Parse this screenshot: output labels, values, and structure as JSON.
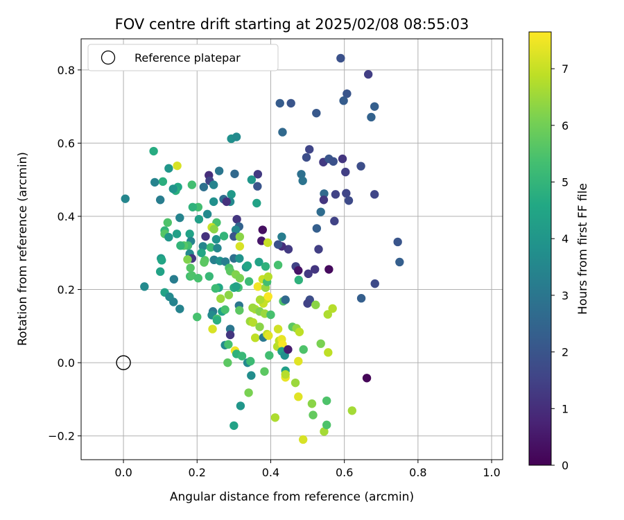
{
  "chart_data": {
    "type": "scatter",
    "title": "FOV centre drift starting at 2025/02/08 08:55:03",
    "xlabel": "Angular distance from reference (arcmin)",
    "ylabel": "Rotation from reference (arcmin)",
    "xlim": [
      -0.115,
      1.03
    ],
    "ylim": [
      -0.265,
      0.885
    ],
    "xticks": [
      0.0,
      0.2,
      0.4,
      0.6,
      0.8,
      1.0
    ],
    "xtick_labels": [
      "0.0",
      "0.2",
      "0.4",
      "0.6",
      "0.8",
      "1.0"
    ],
    "yticks": [
      -0.2,
      0.0,
      0.2,
      0.4,
      0.6,
      0.8
    ],
    "ytick_labels": [
      "−0.2",
      "0.0",
      "0.2",
      "0.4",
      "0.6",
      "0.8"
    ],
    "grid": true,
    "legend": {
      "placement": "top-left",
      "label": "Reference platepar"
    },
    "reference_point": {
      "x": 0.0,
      "y": 0.0
    },
    "colorbar": {
      "label": "Hours from first FF file",
      "min": 0,
      "max": 7.65,
      "ticks": [
        0,
        1,
        2,
        3,
        4,
        5,
        6,
        7
      ],
      "tick_labels": [
        "0",
        "1",
        "2",
        "3",
        "4",
        "5",
        "6",
        "7"
      ],
      "colormap": "viridis"
    },
    "points": [
      {
        "x": 0.59,
        "y": 0.832,
        "c": 1.9
      },
      {
        "x": 0.665,
        "y": 0.788,
        "c": 1.4
      },
      {
        "x": 0.607,
        "y": 0.735,
        "c": 2.0
      },
      {
        "x": 0.598,
        "y": 0.716,
        "c": 2.2
      },
      {
        "x": 0.682,
        "y": 0.7,
        "c": 2.3
      },
      {
        "x": 0.673,
        "y": 0.671,
        "c": 2.4
      },
      {
        "x": 0.425,
        "y": 0.709,
        "c": 2.2
      },
      {
        "x": 0.455,
        "y": 0.709,
        "c": 2.0
      },
      {
        "x": 0.524,
        "y": 0.682,
        "c": 2.1
      },
      {
        "x": 0.432,
        "y": 0.63,
        "c": 2.6
      },
      {
        "x": 0.293,
        "y": 0.612,
        "c": 3.8
      },
      {
        "x": 0.307,
        "y": 0.617,
        "c": 3.6
      },
      {
        "x": 0.505,
        "y": 0.583,
        "c": 1.6
      },
      {
        "x": 0.497,
        "y": 0.561,
        "c": 1.8
      },
      {
        "x": 0.543,
        "y": 0.548,
        "c": 1.3
      },
      {
        "x": 0.558,
        "y": 0.557,
        "c": 2.0
      },
      {
        "x": 0.57,
        "y": 0.55,
        "c": 1.9
      },
      {
        "x": 0.595,
        "y": 0.557,
        "c": 1.2
      },
      {
        "x": 0.603,
        "y": 0.521,
        "c": 1.4
      },
      {
        "x": 0.645,
        "y": 0.537,
        "c": 1.8
      },
      {
        "x": 0.483,
        "y": 0.515,
        "c": 2.8
      },
      {
        "x": 0.487,
        "y": 0.497,
        "c": 2.9
      },
      {
        "x": 0.545,
        "y": 0.462,
        "c": 2.6
      },
      {
        "x": 0.576,
        "y": 0.46,
        "c": 1.5
      },
      {
        "x": 0.605,
        "y": 0.463,
        "c": 1.6
      },
      {
        "x": 0.612,
        "y": 0.443,
        "c": 1.7
      },
      {
        "x": 0.544,
        "y": 0.445,
        "c": 1.2
      },
      {
        "x": 0.536,
        "y": 0.412,
        "c": 2.7
      },
      {
        "x": 0.573,
        "y": 0.387,
        "c": 1.5
      },
      {
        "x": 0.525,
        "y": 0.367,
        "c": 2.3
      },
      {
        "x": 0.682,
        "y": 0.46,
        "c": 1.6
      },
      {
        "x": 0.745,
        "y": 0.33,
        "c": 2.0
      },
      {
        "x": 0.75,
        "y": 0.275,
        "c": 2.3
      },
      {
        "x": 0.683,
        "y": 0.216,
        "c": 1.7
      },
      {
        "x": 0.646,
        "y": 0.176,
        "c": 2.3
      },
      {
        "x": 0.661,
        "y": -0.042,
        "c": 0.1
      },
      {
        "x": 0.53,
        "y": 0.31,
        "c": 1.4
      },
      {
        "x": 0.52,
        "y": 0.255,
        "c": 1.2
      },
      {
        "x": 0.502,
        "y": 0.243,
        "c": 1.3
      },
      {
        "x": 0.468,
        "y": 0.263,
        "c": 1.5
      },
      {
        "x": 0.475,
        "y": 0.252,
        "c": 0.4
      },
      {
        "x": 0.558,
        "y": 0.255,
        "c": 0.2
      },
      {
        "x": 0.506,
        "y": 0.172,
        "c": 1.8
      },
      {
        "x": 0.5,
        "y": 0.162,
        "c": 1.5
      },
      {
        "x": 0.448,
        "y": 0.31,
        "c": 1.3
      },
      {
        "x": 0.43,
        "y": 0.318,
        "c": 1.0
      },
      {
        "x": 0.42,
        "y": 0.323,
        "c": 1.9
      },
      {
        "x": 0.43,
        "y": 0.344,
        "c": 3.2
      },
      {
        "x": 0.378,
        "y": 0.363,
        "c": 0.3
      },
      {
        "x": 0.375,
        "y": 0.333,
        "c": 0.5
      },
      {
        "x": 0.365,
        "y": 0.515,
        "c": 1.3
      },
      {
        "x": 0.364,
        "y": 0.482,
        "c": 2.0
      },
      {
        "x": 0.348,
        "y": 0.5,
        "c": 4.0
      },
      {
        "x": 0.362,
        "y": 0.436,
        "c": 4.4
      },
      {
        "x": 0.293,
        "y": 0.46,
        "c": 4.1
      },
      {
        "x": 0.29,
        "y": 0.44,
        "c": 3.6
      },
      {
        "x": 0.232,
        "y": 0.512,
        "c": 1.0
      },
      {
        "x": 0.234,
        "y": 0.497,
        "c": 1.5
      },
      {
        "x": 0.26,
        "y": 0.524,
        "c": 3.0
      },
      {
        "x": 0.302,
        "y": 0.516,
        "c": 2.6
      },
      {
        "x": 0.245,
        "y": 0.486,
        "c": 3.4
      },
      {
        "x": 0.218,
        "y": 0.48,
        "c": 2.8
      },
      {
        "x": 0.272,
        "y": 0.447,
        "c": 2.7
      },
      {
        "x": 0.28,
        "y": 0.44,
        "c": 1.1
      },
      {
        "x": 0.245,
        "y": 0.44,
        "c": 3.8
      },
      {
        "x": 0.228,
        "y": 0.406,
        "c": 3.6
      },
      {
        "x": 0.253,
        "y": 0.383,
        "c": 5.4
      },
      {
        "x": 0.308,
        "y": 0.392,
        "c": 1.2
      },
      {
        "x": 0.314,
        "y": 0.372,
        "c": 2.4
      },
      {
        "x": 0.305,
        "y": 0.363,
        "c": 3.5
      },
      {
        "x": 0.3,
        "y": 0.345,
        "c": 2.0
      },
      {
        "x": 0.316,
        "y": 0.344,
        "c": 6.3
      },
      {
        "x": 0.273,
        "y": 0.346,
        "c": 5.0
      },
      {
        "x": 0.252,
        "y": 0.337,
        "c": 3.9
      },
      {
        "x": 0.223,
        "y": 0.345,
        "c": 1.1
      },
      {
        "x": 0.216,
        "y": 0.318,
        "c": 3.5
      },
      {
        "x": 0.237,
        "y": 0.315,
        "c": 5.2
      },
      {
        "x": 0.255,
        "y": 0.313,
        "c": 3.5
      },
      {
        "x": 0.246,
        "y": 0.281,
        "c": 3.3
      },
      {
        "x": 0.262,
        "y": 0.278,
        "c": 3.8
      },
      {
        "x": 0.277,
        "y": 0.276,
        "c": 3.2
      },
      {
        "x": 0.3,
        "y": 0.285,
        "c": 2.8
      },
      {
        "x": 0.315,
        "y": 0.285,
        "c": 3.9
      },
      {
        "x": 0.333,
        "y": 0.261,
        "c": 4.0
      },
      {
        "x": 0.337,
        "y": 0.265,
        "c": 4.5
      },
      {
        "x": 0.287,
        "y": 0.259,
        "c": 5.5
      },
      {
        "x": 0.29,
        "y": 0.25,
        "c": 5.7
      },
      {
        "x": 0.305,
        "y": 0.241,
        "c": 6.2
      },
      {
        "x": 0.316,
        "y": 0.231,
        "c": 6.1
      },
      {
        "x": 0.312,
        "y": 0.205,
        "c": 5.3
      },
      {
        "x": 0.3,
        "y": 0.205,
        "c": 4.7
      },
      {
        "x": 0.259,
        "y": 0.205,
        "c": 4.6
      },
      {
        "x": 0.25,
        "y": 0.203,
        "c": 5.2
      },
      {
        "x": 0.233,
        "y": 0.236,
        "c": 5.1
      },
      {
        "x": 0.221,
        "y": 0.28,
        "c": 5.6
      },
      {
        "x": 0.219,
        "y": 0.274,
        "c": 5.7
      },
      {
        "x": 0.212,
        "y": 0.3,
        "c": 4.5
      },
      {
        "x": 0.205,
        "y": 0.392,
        "c": 4.3
      },
      {
        "x": 0.203,
        "y": 0.425,
        "c": 5.3
      },
      {
        "x": 0.188,
        "y": 0.425,
        "c": 4.9
      },
      {
        "x": 0.186,
        "y": 0.486,
        "c": 5.3
      },
      {
        "x": 0.148,
        "y": 0.48,
        "c": 4.6
      },
      {
        "x": 0.142,
        "y": 0.47,
        "c": 4.8
      },
      {
        "x": 0.146,
        "y": 0.538,
        "c": 7.2
      },
      {
        "x": 0.123,
        "y": 0.531,
        "c": 4.0
      },
      {
        "x": 0.082,
        "y": 0.578,
        "c": 4.7
      },
      {
        "x": 0.107,
        "y": 0.495,
        "c": 4.8
      },
      {
        "x": 0.085,
        "y": 0.493,
        "c": 3.4
      },
      {
        "x": 0.135,
        "y": 0.475,
        "c": 3.9
      },
      {
        "x": 0.1,
        "y": 0.445,
        "c": 3.2
      },
      {
        "x": 0.153,
        "y": 0.396,
        "c": 3.4
      },
      {
        "x": 0.005,
        "y": 0.448,
        "c": 3.5
      },
      {
        "x": 0.12,
        "y": 0.383,
        "c": 5.5
      },
      {
        "x": 0.112,
        "y": 0.361,
        "c": 5.0
      },
      {
        "x": 0.112,
        "y": 0.352,
        "c": 5.6
      },
      {
        "x": 0.145,
        "y": 0.352,
        "c": 4.3
      },
      {
        "x": 0.18,
        "y": 0.352,
        "c": 4.4
      },
      {
        "x": 0.123,
        "y": 0.343,
        "c": 4.0
      },
      {
        "x": 0.183,
        "y": 0.332,
        "c": 3.4
      },
      {
        "x": 0.175,
        "y": 0.32,
        "c": 5.3
      },
      {
        "x": 0.164,
        "y": 0.32,
        "c": 5.6
      },
      {
        "x": 0.155,
        "y": 0.32,
        "c": 5.0
      },
      {
        "x": 0.18,
        "y": 0.298,
        "c": 3.6
      },
      {
        "x": 0.186,
        "y": 0.285,
        "c": 1.2
      },
      {
        "x": 0.174,
        "y": 0.282,
        "c": 6.2
      },
      {
        "x": 0.182,
        "y": 0.259,
        "c": 5.6
      },
      {
        "x": 0.181,
        "y": 0.236,
        "c": 5.3
      },
      {
        "x": 0.186,
        "y": 0.238,
        "c": 5.5
      },
      {
        "x": 0.203,
        "y": 0.231,
        "c": 5.4
      },
      {
        "x": 0.102,
        "y": 0.285,
        "c": 4.1
      },
      {
        "x": 0.104,
        "y": 0.28,
        "c": 4.5
      },
      {
        "x": 0.1,
        "y": 0.249,
        "c": 4.4
      },
      {
        "x": 0.137,
        "y": 0.228,
        "c": 3.2
      },
      {
        "x": 0.057,
        "y": 0.208,
        "c": 3.6
      },
      {
        "x": 0.112,
        "y": 0.192,
        "c": 4.4
      },
      {
        "x": 0.125,
        "y": 0.18,
        "c": 3.6
      },
      {
        "x": 0.136,
        "y": 0.166,
        "c": 3.4
      },
      {
        "x": 0.153,
        "y": 0.147,
        "c": 3.4
      },
      {
        "x": 0.2,
        "y": 0.125,
        "c": 5.4
      },
      {
        "x": 0.243,
        "y": 0.14,
        "c": 3.1
      },
      {
        "x": 0.24,
        "y": 0.13,
        "c": 3.6
      },
      {
        "x": 0.254,
        "y": 0.12,
        "c": 5.4
      },
      {
        "x": 0.254,
        "y": 0.116,
        "c": 4.8
      },
      {
        "x": 0.268,
        "y": 0.14,
        "c": 4.4
      },
      {
        "x": 0.276,
        "y": 0.145,
        "c": 5.4
      },
      {
        "x": 0.286,
        "y": 0.185,
        "c": 6.3
      },
      {
        "x": 0.264,
        "y": 0.175,
        "c": 6.5
      },
      {
        "x": 0.24,
        "y": 0.37,
        "c": 7.0
      },
      {
        "x": 0.246,
        "y": 0.365,
        "c": 6.3
      },
      {
        "x": 0.316,
        "y": 0.318,
        "c": 7.2
      },
      {
        "x": 0.306,
        "y": 0.208,
        "c": 4.4
      },
      {
        "x": 0.314,
        "y": 0.156,
        "c": 3.0
      },
      {
        "x": 0.315,
        "y": 0.143,
        "c": 5.7
      },
      {
        "x": 0.29,
        "y": 0.092,
        "c": 3.0
      },
      {
        "x": 0.29,
        "y": 0.076,
        "c": 1.2
      },
      {
        "x": 0.242,
        "y": 0.092,
        "c": 7.2
      },
      {
        "x": 0.276,
        "y": 0.048,
        "c": 3.6
      },
      {
        "x": 0.285,
        "y": 0.05,
        "c": 5.4
      },
      {
        "x": 0.303,
        "y": 0.033,
        "c": 7.5
      },
      {
        "x": 0.307,
        "y": 0.024,
        "c": 4.9
      },
      {
        "x": 0.322,
        "y": 0.018,
        "c": 5.1
      },
      {
        "x": 0.283,
        "y": 0.0,
        "c": 5.7
      },
      {
        "x": 0.337,
        "y": 0.0,
        "c": 3.6
      },
      {
        "x": 0.345,
        "y": 0.004,
        "c": 5.2
      },
      {
        "x": 0.347,
        "y": -0.035,
        "c": 3.7
      },
      {
        "x": 0.34,
        "y": -0.082,
        "c": 6.1
      },
      {
        "x": 0.318,
        "y": -0.118,
        "c": 4.0
      },
      {
        "x": 0.3,
        "y": -0.172,
        "c": 4.4
      },
      {
        "x": 0.341,
        "y": 0.222,
        "c": 5.2
      },
      {
        "x": 0.365,
        "y": 0.208,
        "c": 7.5
      },
      {
        "x": 0.378,
        "y": 0.228,
        "c": 7.0
      },
      {
        "x": 0.386,
        "y": 0.205,
        "c": 6.4
      },
      {
        "x": 0.39,
        "y": 0.221,
        "c": 5.3
      },
      {
        "x": 0.393,
        "y": 0.235,
        "c": 6.8
      },
      {
        "x": 0.368,
        "y": 0.275,
        "c": 4.4
      },
      {
        "x": 0.386,
        "y": 0.263,
        "c": 4.9
      },
      {
        "x": 0.392,
        "y": 0.328,
        "c": 7.0
      },
      {
        "x": 0.39,
        "y": 0.175,
        "c": 6.9
      },
      {
        "x": 0.393,
        "y": 0.181,
        "c": 7.6
      },
      {
        "x": 0.38,
        "y": 0.162,
        "c": 7.0
      },
      {
        "x": 0.371,
        "y": 0.172,
        "c": 6.7
      },
      {
        "x": 0.358,
        "y": 0.146,
        "c": 6.7
      },
      {
        "x": 0.351,
        "y": 0.15,
        "c": 6.5
      },
      {
        "x": 0.37,
        "y": 0.14,
        "c": 6.2
      },
      {
        "x": 0.384,
        "y": 0.134,
        "c": 6.5
      },
      {
        "x": 0.4,
        "y": 0.131,
        "c": 5.4
      },
      {
        "x": 0.344,
        "y": 0.113,
        "c": 6.5
      },
      {
        "x": 0.352,
        "y": 0.11,
        "c": 6.8
      },
      {
        "x": 0.37,
        "y": 0.098,
        "c": 6.3
      },
      {
        "x": 0.358,
        "y": 0.068,
        "c": 6.9
      },
      {
        "x": 0.38,
        "y": 0.069,
        "c": 3.1
      },
      {
        "x": 0.39,
        "y": 0.078,
        "c": 6.9
      },
      {
        "x": 0.394,
        "y": 0.074,
        "c": 7.3
      },
      {
        "x": 0.396,
        "y": 0.02,
        "c": 5.3
      },
      {
        "x": 0.383,
        "y": -0.024,
        "c": 5.7
      },
      {
        "x": 0.412,
        "y": -0.15,
        "c": 6.7
      },
      {
        "x": 0.418,
        "y": 0.044,
        "c": 6.8
      },
      {
        "x": 0.423,
        "y": 0.06,
        "c": 6.9
      },
      {
        "x": 0.43,
        "y": 0.064,
        "c": 7.4
      },
      {
        "x": 0.432,
        "y": 0.05,
        "c": 7.6
      },
      {
        "x": 0.42,
        "y": 0.092,
        "c": 7.1
      },
      {
        "x": 0.42,
        "y": 0.267,
        "c": 5.4
      },
      {
        "x": 0.434,
        "y": 0.168,
        "c": 5.5
      },
      {
        "x": 0.44,
        "y": 0.172,
        "c": 2.6
      },
      {
        "x": 0.43,
        "y": 0.031,
        "c": 4.3
      },
      {
        "x": 0.438,
        "y": 0.02,
        "c": 3.8
      },
      {
        "x": 0.44,
        "y": -0.022,
        "c": 4.3
      },
      {
        "x": 0.44,
        "y": -0.04,
        "c": 7.4
      },
      {
        "x": 0.44,
        "y": -0.032,
        "c": 6.8
      },
      {
        "x": 0.447,
        "y": 0.036,
        "c": 0.6
      },
      {
        "x": 0.459,
        "y": 0.098,
        "c": 5.7
      },
      {
        "x": 0.47,
        "y": 0.094,
        "c": 6.4
      },
      {
        "x": 0.478,
        "y": 0.084,
        "c": 6.9
      },
      {
        "x": 0.475,
        "y": 0.004,
        "c": 7.3
      },
      {
        "x": 0.467,
        "y": -0.055,
        "c": 6.5
      },
      {
        "x": 0.475,
        "y": -0.093,
        "c": 7.3
      },
      {
        "x": 0.476,
        "y": 0.226,
        "c": 4.9
      },
      {
        "x": 0.489,
        "y": 0.036,
        "c": 5.5
      },
      {
        "x": 0.488,
        "y": -0.21,
        "c": 7.2
      },
      {
        "x": 0.512,
        "y": -0.112,
        "c": 6.3
      },
      {
        "x": 0.515,
        "y": -0.143,
        "c": 5.8
      },
      {
        "x": 0.522,
        "y": 0.158,
        "c": 6.3
      },
      {
        "x": 0.536,
        "y": 0.052,
        "c": 6.1
      },
      {
        "x": 0.545,
        "y": -0.188,
        "c": 6.6
      },
      {
        "x": 0.552,
        "y": -0.104,
        "c": 5.5
      },
      {
        "x": 0.552,
        "y": -0.17,
        "c": 5.5
      },
      {
        "x": 0.555,
        "y": 0.132,
        "c": 6.7
      },
      {
        "x": 0.556,
        "y": 0.028,
        "c": 6.9
      },
      {
        "x": 0.568,
        "y": 0.148,
        "c": 6.8
      },
      {
        "x": 0.621,
        "y": -0.131,
        "c": 6.6
      }
    ]
  }
}
